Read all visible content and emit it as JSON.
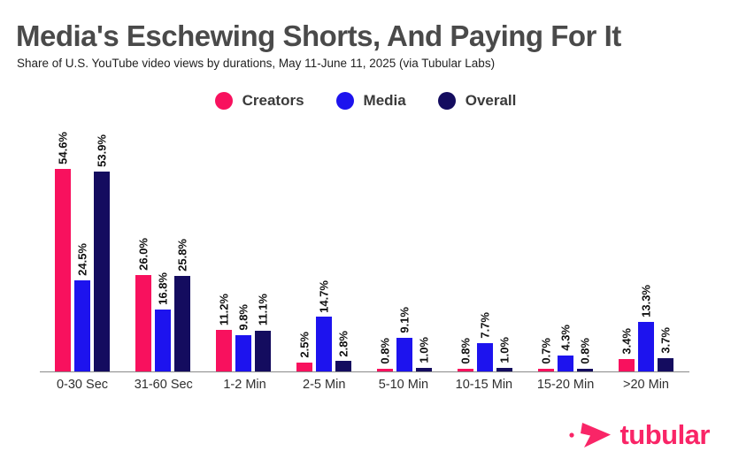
{
  "page": {
    "background": "#ffffff"
  },
  "header": {
    "title": "Media's Eschewing Shorts, And Paying For It",
    "subtitle": "Share of U.S. YouTube video views by durations, May 11-June 11, 2025 (via Tubular Labs)"
  },
  "chart_data": {
    "type": "bar",
    "title": "Media's Eschewing Shorts, And Paying For It",
    "subtitle": "Share of U.S. YouTube video views by durations, May 11-June 11, 2025 (via Tubular Labs)",
    "categories": [
      "0-30 Sec",
      "31-60 Sec",
      "1-2 Min",
      "2-5 Min",
      "5-10 Min",
      "10-15 Min",
      "15-20 Min",
      ">20 Min"
    ],
    "series": [
      {
        "name": "Creators",
        "color": "#F8115E",
        "values": [
          54.6,
          26.0,
          11.2,
          2.5,
          0.8,
          0.8,
          0.7,
          3.4
        ]
      },
      {
        "name": "Media",
        "color": "#1D13EE",
        "values": [
          24.5,
          16.8,
          9.8,
          14.7,
          9.1,
          7.7,
          4.3,
          13.3
        ]
      },
      {
        "name": "Overall",
        "color": "#140C5F",
        "values": [
          53.9,
          25.8,
          11.1,
          2.8,
          1.0,
          1.0,
          0.8,
          3.7
        ]
      }
    ],
    "value_label_format": "{value}%",
    "value_labels_rotated": true,
    "xlabel": "",
    "ylabel": "",
    "ylim": [
      0,
      56
    ],
    "grid": false,
    "y_axis_visible": false,
    "legend_position": "top"
  },
  "footer": {
    "logo_text": "tubular",
    "logo_color": "#F92567"
  }
}
